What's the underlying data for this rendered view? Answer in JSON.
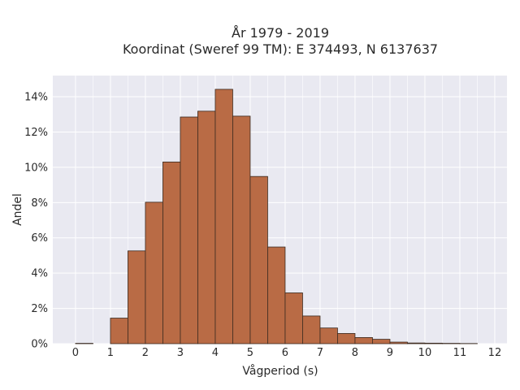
{
  "chart_data": {
    "type": "bar",
    "title_line1": "År 1979 - 2019",
    "title_line2": "Koordinat (Sweref 99 TM): E 374493, N 6137637",
    "xlabel": "Vågperiod (s)",
    "ylabel": "Andel",
    "bin_width": 0.5,
    "bins": [
      {
        "x0": 0.0,
        "x1": 0.5,
        "value": 0.0002
      },
      {
        "x0": 1.0,
        "x1": 1.5,
        "value": 0.0145
      },
      {
        "x0": 1.5,
        "x1": 2.0,
        "value": 0.0526
      },
      {
        "x0": 2.0,
        "x1": 2.5,
        "value": 0.0802
      },
      {
        "x0": 2.5,
        "x1": 3.0,
        "value": 0.103
      },
      {
        "x0": 3.0,
        "x1": 3.5,
        "value": 0.1285
      },
      {
        "x0": 3.5,
        "x1": 4.0,
        "value": 0.1318
      },
      {
        "x0": 4.0,
        "x1": 4.5,
        "value": 0.1442
      },
      {
        "x0": 4.5,
        "x1": 5.0,
        "value": 0.129
      },
      {
        "x0": 5.0,
        "x1": 5.5,
        "value": 0.0948
      },
      {
        "x0": 5.5,
        "x1": 6.0,
        "value": 0.0548
      },
      {
        "x0": 6.0,
        "x1": 6.5,
        "value": 0.0288
      },
      {
        "x0": 6.5,
        "x1": 7.0,
        "value": 0.0157
      },
      {
        "x0": 7.0,
        "x1": 7.5,
        "value": 0.0089
      },
      {
        "x0": 7.5,
        "x1": 8.0,
        "value": 0.0058
      },
      {
        "x0": 8.0,
        "x1": 8.5,
        "value": 0.0035
      },
      {
        "x0": 8.5,
        "x1": 9.0,
        "value": 0.0025
      },
      {
        "x0": 9.0,
        "x1": 9.5,
        "value": 0.0009
      },
      {
        "x0": 9.5,
        "x1": 10.0,
        "value": 0.0004
      },
      {
        "x0": 10.0,
        "x1": 10.5,
        "value": 0.0003
      },
      {
        "x0": 10.5,
        "x1": 11.0,
        "value": 0.0002
      },
      {
        "x0": 11.0,
        "x1": 11.5,
        "value": 0.0001
      }
    ],
    "xlim": [
      -0.65,
      12.35
    ],
    "ylim": [
      0,
      0.152
    ],
    "xticks": [
      0,
      1,
      2,
      3,
      4,
      5,
      6,
      7,
      8,
      9,
      10,
      11,
      12
    ],
    "xtick_labels": [
      "0",
      "1",
      "2",
      "3",
      "4",
      "5",
      "6",
      "7",
      "8",
      "9",
      "10",
      "11",
      "12"
    ],
    "yticks": [
      0,
      0.02,
      0.04,
      0.06,
      0.08,
      0.1,
      0.12,
      0.14
    ],
    "ytick_labels": [
      "0%",
      "2%",
      "4%",
      "6%",
      "8%",
      "10%",
      "12%",
      "14%"
    ],
    "grid": true,
    "colors": {
      "bar_fill": "#b96b45",
      "bar_edge": "#3a2a20",
      "plot_background": "#e9e9f1",
      "grid": "#ffffff"
    }
  }
}
